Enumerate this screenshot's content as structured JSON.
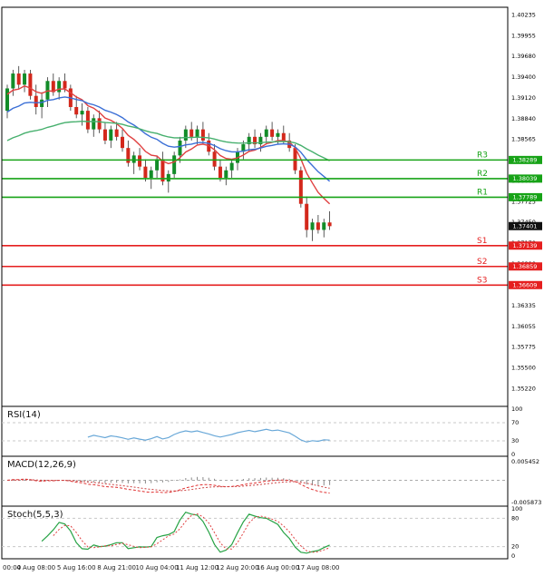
{
  "chart_data": {
    "type": "candlestick",
    "candles": [
      [
        1.3895,
        1.393,
        1.3885,
        1.3925
      ],
      [
        1.3925,
        1.395,
        1.3915,
        1.3945
      ],
      [
        1.3945,
        1.3955,
        1.3925,
        1.393
      ],
      [
        1.393,
        1.395,
        1.392,
        1.3945
      ],
      [
        1.3945,
        1.395,
        1.391,
        1.3915
      ],
      [
        1.3915,
        1.393,
        1.389,
        1.39
      ],
      [
        1.39,
        1.392,
        1.3885,
        1.391
      ],
      [
        1.391,
        1.394,
        1.39,
        1.3935
      ],
      [
        1.3935,
        1.3945,
        1.3915,
        1.392
      ],
      [
        1.392,
        1.394,
        1.391,
        1.3935
      ],
      [
        1.3935,
        1.3945,
        1.392,
        1.3925
      ],
      [
        1.3925,
        1.393,
        1.3895,
        1.39
      ],
      [
        1.39,
        1.3915,
        1.3885,
        1.389
      ],
      [
        1.389,
        1.3905,
        1.3875,
        1.3895
      ],
      [
        1.3895,
        1.39,
        1.3865,
        1.387
      ],
      [
        1.387,
        1.389,
        1.386,
        1.3885
      ],
      [
        1.3885,
        1.3895,
        1.3865,
        1.387
      ],
      [
        1.387,
        1.388,
        1.385,
        1.3855
      ],
      [
        1.3855,
        1.3875,
        1.3845,
        1.387
      ],
      [
        1.387,
        1.388,
        1.3855,
        1.386
      ],
      [
        1.386,
        1.387,
        1.384,
        1.3845
      ],
      [
        1.3845,
        1.3855,
        1.382,
        1.3825
      ],
      [
        1.3825,
        1.384,
        1.381,
        1.3835
      ],
      [
        1.3835,
        1.3845,
        1.3815,
        1.382
      ],
      [
        1.382,
        1.383,
        1.38,
        1.3805
      ],
      [
        1.3805,
        1.382,
        1.379,
        1.3815
      ],
      [
        1.3815,
        1.3835,
        1.3805,
        1.383
      ],
      [
        1.383,
        1.384,
        1.3795,
        1.38
      ],
      [
        1.38,
        1.3815,
        1.3785,
        1.381
      ],
      [
        1.381,
        1.384,
        1.3805,
        1.3835
      ],
      [
        1.3835,
        1.386,
        1.3825,
        1.3855
      ],
      [
        1.3855,
        1.3875,
        1.3845,
        1.387
      ],
      [
        1.387,
        1.388,
        1.3855,
        1.386
      ],
      [
        1.386,
        1.3875,
        1.385,
        1.387
      ],
      [
        1.387,
        1.388,
        1.385,
        1.3855
      ],
      [
        1.3855,
        1.3865,
        1.3835,
        1.384
      ],
      [
        1.384,
        1.385,
        1.3815,
        1.382
      ],
      [
        1.382,
        1.383,
        1.38,
        1.3805
      ],
      [
        1.3805,
        1.382,
        1.3795,
        1.3815
      ],
      [
        1.3815,
        1.383,
        1.3805,
        1.3825
      ],
      [
        1.3825,
        1.3845,
        1.3815,
        1.384
      ],
      [
        1.384,
        1.3855,
        1.383,
        1.385
      ],
      [
        1.385,
        1.3865,
        1.384,
        1.386
      ],
      [
        1.386,
        1.387,
        1.3845,
        1.385
      ],
      [
        1.385,
        1.3865,
        1.384,
        1.386
      ],
      [
        1.386,
        1.3875,
        1.385,
        1.387
      ],
      [
        1.387,
        1.388,
        1.3855,
        1.386
      ],
      [
        1.386,
        1.387,
        1.385,
        1.3865
      ],
      [
        1.3865,
        1.3875,
        1.385,
        1.3855
      ],
      [
        1.3855,
        1.3865,
        1.384,
        1.3845
      ],
      [
        1.3845,
        1.385,
        1.381,
        1.3815
      ],
      [
        1.3815,
        1.382,
        1.3765,
        1.377
      ],
      [
        1.377,
        1.378,
        1.3725,
        1.3735
      ],
      [
        1.3735,
        1.375,
        1.372,
        1.3745
      ],
      [
        1.3745,
        1.3755,
        1.373,
        1.3735
      ],
      [
        1.3735,
        1.375,
        1.3725,
        1.3745
      ],
      [
        1.3745,
        1.376,
        1.3735,
        1.374
      ]
    ],
    "x_labels": [
      {
        "text": "00:00",
        "i": -0.6
      },
      {
        "text": "4 Aug 08:00",
        "i": 5
      },
      {
        "text": "5 Aug 16:00",
        "i": 12
      },
      {
        "text": "8 Aug 21:00",
        "i": 19
      },
      {
        "text": "10 Aug 04:00",
        "i": 26
      },
      {
        "text": "11 Aug 12:00",
        "i": 33
      },
      {
        "text": "12 Aug 20:00",
        "i": 40
      },
      {
        "text": "16 Aug 00:00",
        "i": 47
      },
      {
        "text": "17 Aug 08:00",
        "i": 54
      }
    ],
    "y_axis_labels": [
      "1.40235",
      "1.39955",
      "1.39680",
      "1.39400",
      "1.39120",
      "1.38840",
      "1.38565",
      "1.38285",
      "1.38005",
      "1.37725",
      "1.37450",
      "1.37170",
      "1.36890",
      "1.36610",
      "1.36335",
      "1.36055",
      "1.35775",
      "1.35500",
      "1.35220"
    ],
    "price_range": {
      "min": 1.3498,
      "max": 1.4034
    },
    "pivot_levels": [
      {
        "label": "R3",
        "value": 1.38289,
        "tag": "1.38289",
        "color": "#17a317"
      },
      {
        "label": "R2",
        "value": 1.38039,
        "tag": "1.38039",
        "color": "#17a317"
      },
      {
        "label": "R1",
        "value": 1.37789,
        "tag": "1.37789",
        "color": "#17a317"
      },
      {
        "label": "S1",
        "value": 1.37139,
        "tag": "1.37139",
        "color": "#e51f1f"
      },
      {
        "label": "S2",
        "value": 1.36859,
        "tag": "1.36859",
        "color": "#e51f1f"
      },
      {
        "label": "S3",
        "value": 1.36609,
        "tag": "1.36609",
        "color": "#e51f1f"
      }
    ],
    "current_price": {
      "value": 1.37401,
      "tag": "1.37401",
      "box_color": "#111111"
    },
    "moving_averages": [
      {
        "name": "ma-fast",
        "period": 9,
        "color": "#e04040",
        "seed": 1.3915
      },
      {
        "name": "ma-mid",
        "period": 20,
        "color": "#3b6fd6",
        "seed": 1.389
      },
      {
        "name": "ma-slow",
        "period": 48,
        "color": "#47b06e",
        "seed": 1.3852
      }
    ],
    "indicators": {
      "rsi": {
        "title": "RSI(14)",
        "period": 14,
        "color": "#69a8d8",
        "levels": [
          70,
          30
        ],
        "scale_labels": [
          "100",
          "70",
          "30",
          "0"
        ],
        "scale_values": [
          100,
          70,
          30,
          0
        ]
      },
      "macd": {
        "title": "MACD(12,26,9)",
        "fast": 12,
        "slow": 26,
        "signal": 9,
        "line_color": "#e03030",
        "signal_color": "#cc4444",
        "hist_color": "#888888",
        "range": [
          -0.005873,
          0.005452
        ],
        "scale_labels": [
          "0.005452",
          "-0.005873"
        ]
      },
      "stoch": {
        "title": "Stoch(5,5,3)",
        "k": 5,
        "d": 5,
        "slowing": 3,
        "k_color": "#27a345",
        "d_color": "#e04040",
        "levels": [
          80,
          20
        ],
        "scale_labels": [
          "100",
          "80",
          "20",
          "0"
        ],
        "scale_values": [
          100,
          80,
          20,
          0
        ]
      }
    },
    "candle_colors": {
      "up": "#128c28",
      "down": "#d3281c",
      "wick": "#333333"
    }
  }
}
